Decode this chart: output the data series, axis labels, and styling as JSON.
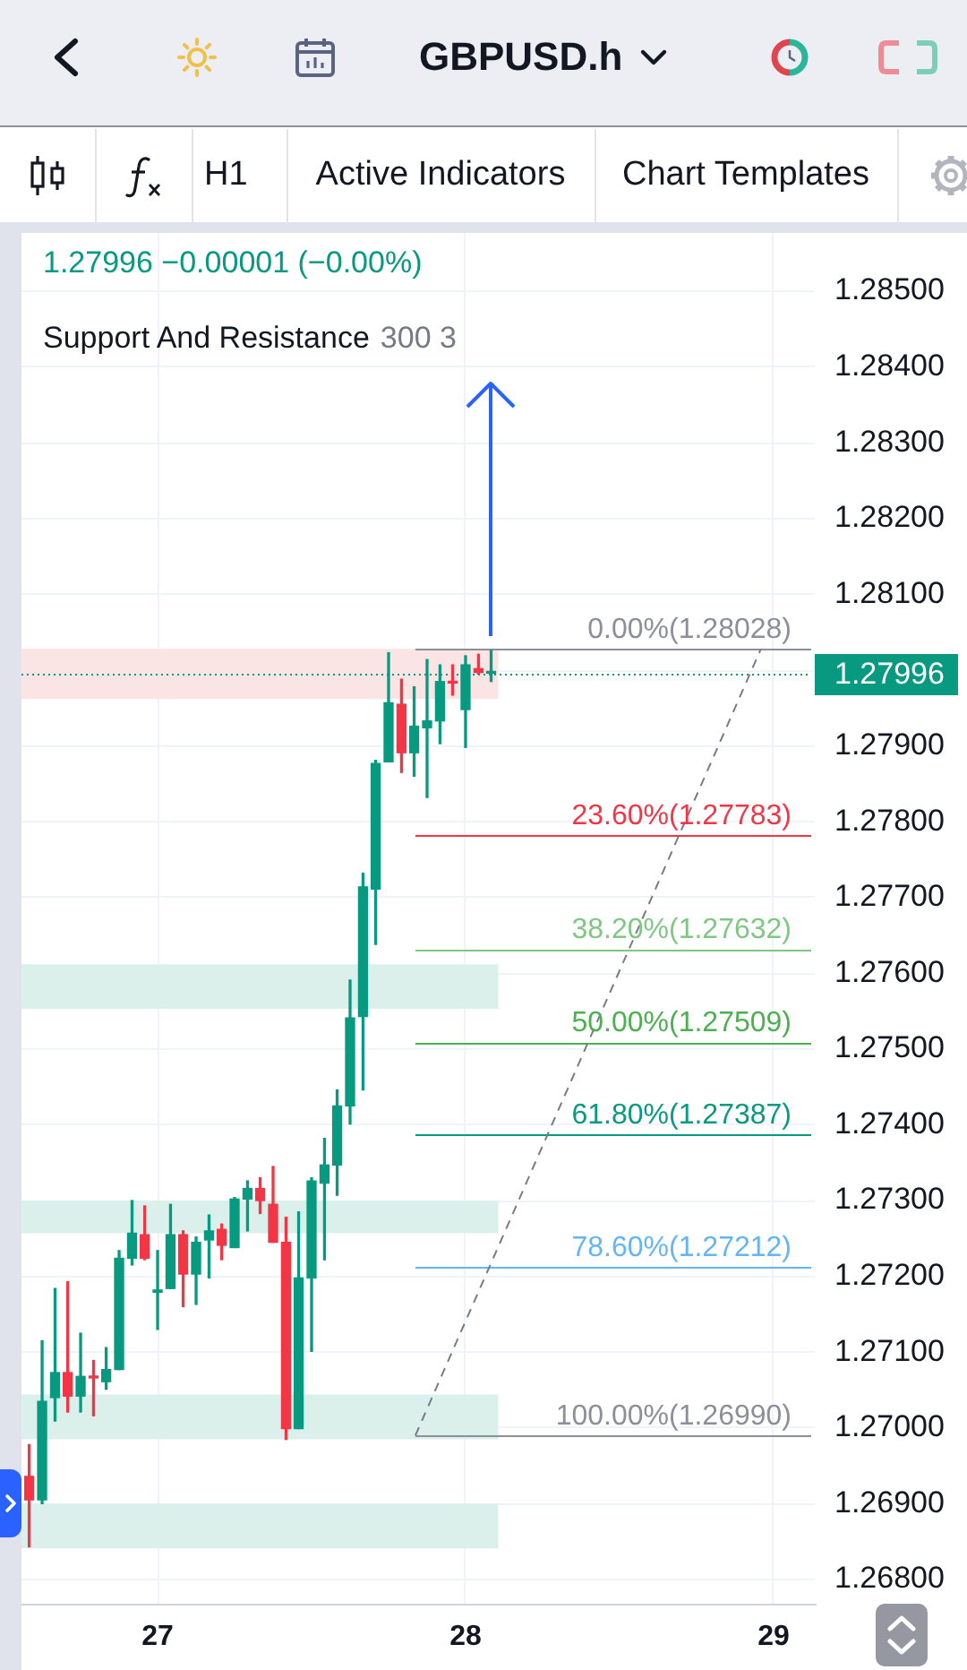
{
  "chart_data": {
    "type": "candlestick",
    "title": "GBPUSD.h",
    "annotations": [
      "H1",
      "Active Indicators",
      "Chart Templates",
      "1.27996 −0.00001 (−0.00%)",
      "Support And Resistance",
      "300 3"
    ],
    "x": [
      26.583,
      26.625,
      26.667,
      26.708,
      26.75,
      26.792,
      26.833,
      26.875,
      26.917,
      26.958,
      27,
      27.042,
      27.083,
      27.125,
      27.167,
      27.208,
      27.25,
      27.292,
      27.333,
      27.375,
      27.417,
      27.458,
      27.5,
      27.542,
      27.583,
      27.625,
      27.667,
      27.708,
      27.75,
      27.792,
      27.833,
      27.875,
      27.917,
      27.958,
      28,
      28.042,
      28.083
    ],
    "ohlc": [
      [
        1.26936,
        1.26978,
        1.26843,
        1.26905
      ],
      [
        1.26905,
        1.27115,
        1.269,
        1.27035
      ],
      [
        1.2704,
        1.27184,
        1.27009,
        1.27073
      ],
      [
        1.27073,
        1.27193,
        1.27021,
        1.27042
      ],
      [
        1.27042,
        1.27125,
        1.27021,
        1.27068
      ],
      [
        1.27068,
        1.27089,
        1.27016,
        1.27066
      ],
      [
        1.27061,
        1.27106,
        1.27051,
        1.27077
      ],
      [
        1.27077,
        1.27234,
        1.27077,
        1.27224
      ],
      [
        1.27224,
        1.273,
        1.27215,
        1.27257
      ],
      [
        1.27255,
        1.27293,
        1.27222,
        1.27224
      ],
      [
        1.27179,
        1.27234,
        1.2713,
        1.27182
      ],
      [
        1.27184,
        1.27295,
        1.27184,
        1.27255
      ],
      [
        1.27255,
        1.2726,
        1.2716,
        1.27203
      ],
      [
        1.27203,
        1.27252,
        1.27163,
        1.27245
      ],
      [
        1.27248,
        1.27281,
        1.27198,
        1.2726
      ],
      [
        1.27262,
        1.27269,
        1.27222,
        1.27241
      ],
      [
        1.27238,
        1.27304,
        1.27238,
        1.27302
      ],
      [
        1.27302,
        1.27326,
        1.2726,
        1.27316
      ],
      [
        1.27316,
        1.2733,
        1.27283,
        1.273
      ],
      [
        1.27295,
        1.27345,
        1.27245,
        1.27245
      ],
      [
        1.27245,
        1.27278,
        1.26985,
        1.26999
      ],
      [
        1.26999,
        1.27285,
        1.26999,
        1.27198
      ],
      [
        1.27198,
        1.2733,
        1.27101,
        1.27326
      ],
      [
        1.27323,
        1.27382,
        1.27222,
        1.27347
      ],
      [
        1.27347,
        1.27446,
        1.27307,
        1.27425
      ],
      [
        1.27425,
        1.27591,
        1.27401,
        1.27541
      ],
      [
        1.27543,
        1.27732,
        1.27446,
        1.27714
      ],
      [
        1.27711,
        1.27881,
        1.27638,
        1.27877
      ],
      [
        1.27879,
        1.28023,
        1.27879,
        1.27957
      ],
      [
        1.27955,
        1.27988,
        1.27865,
        1.27891
      ],
      [
        1.27891,
        1.27978,
        1.2786,
        1.27926
      ],
      [
        1.27924,
        1.28014,
        1.27832,
        1.27933
      ],
      [
        1.27933,
        1.28007,
        1.27903,
        1.27985
      ],
      [
        1.27985,
        1.28007,
        1.27967,
        1.27983
      ],
      [
        1.27948,
        1.28019,
        1.27898,
        1.28007
      ],
      [
        1.28002,
        1.28021,
        1.27995,
        1.27997
      ],
      [
        1.27996,
        1.28026,
        1.27985,
        1.27996
      ]
    ],
    "colors": [
      "#f23645",
      "#089981",
      "#089981",
      "#f23645",
      "#089981",
      "#f23645",
      "#089981",
      "#089981",
      "#089981",
      "#f23645",
      "#089981",
      "#089981",
      "#f23645",
      "#089981",
      "#089981",
      "#f23645",
      "#089981",
      "#089981",
      "#f23645",
      "#f23645",
      "#f23645",
      "#089981",
      "#089981",
      "#089981",
      "#089981",
      "#089981",
      "#089981",
      "#089981",
      "#089981",
      "#f23645",
      "#089981",
      "#089981",
      "#089981",
      "#f23645",
      "#089981",
      "#f23645",
      "#089981"
    ],
    "series": [
      {
        "type": "line",
        "x": [
          27.837,
          28.959
        ],
        "values": [
          1.2699,
          1.28028
        ],
        "color": "#787b86",
        "line_style": "dashed"
      }
    ],
    "xlim": [
      26.558,
      29.134
    ],
    "xticks": [
      27,
      28,
      29
    ],
    "ylim": [
      1.26768,
      1.28577
    ],
    "yticks": [
      {
        "value": 1.268,
        "label": "1.26800"
      },
      {
        "value": 1.269,
        "label": "1.26900"
      },
      {
        "value": 1.27,
        "label": "1.27000"
      },
      {
        "value": 1.271,
        "label": "1.27100"
      },
      {
        "value": 1.272,
        "label": "1.27200"
      },
      {
        "value": 1.273,
        "label": "1.27300"
      },
      {
        "value": 1.274,
        "label": "1.27400"
      },
      {
        "value": 1.275,
        "label": "1.27500"
      },
      {
        "value": 1.276,
        "label": "1.27600"
      },
      {
        "value": 1.277,
        "label": "1.27700"
      },
      {
        "value": 1.278,
        "label": "1.27800"
      },
      {
        "value": 1.279,
        "label": "1.27900"
      },
      {
        "value": 1.28,
        "label": null
      },
      {
        "value": 1.281,
        "label": "1.28100"
      },
      {
        "value": 1.282,
        "label": "1.28200"
      },
      {
        "value": 1.283,
        "label": "1.28300"
      },
      {
        "value": 1.284,
        "label": "1.28400"
      },
      {
        "value": 1.285,
        "label": "1.28500"
      }
    ],
    "bands": [
      {
        "axis": "y",
        "from": 1.27553,
        "to": 1.27612,
        "color": "#dcf0eb"
      },
      {
        "axis": "y",
        "from": 1.27257,
        "to": 1.273,
        "color": "#dcf0eb"
      },
      {
        "axis": "y",
        "from": 1.26985,
        "to": 1.27044,
        "color": "#dcf0eb"
      },
      {
        "axis": "y",
        "from": 1.26841,
        "to": 1.269,
        "color": "#dcf0eb"
      },
      {
        "axis": "y",
        "from": 1.27962,
        "to": 1.28028,
        "color": "#fbe4e4"
      }
    ],
    "ref_lines": [
      {
        "axis": "y",
        "value": 1.28028,
        "label": "0.00%(1.28028)",
        "color": "#8c8f99"
      },
      {
        "axis": "y",
        "value": 1.27783,
        "label": "23.60%(1.27783)",
        "color": "#f23645"
      },
      {
        "axis": "y",
        "value": 1.27632,
        "label": "38.20%(1.27632)",
        "color": "#81c784"
      },
      {
        "axis": "y",
        "value": 1.27509,
        "label": "50.00%(1.27509)",
        "color": "#4caf50"
      },
      {
        "axis": "y",
        "value": 1.27387,
        "label": "61.80%(1.27387)",
        "color": "#089981"
      },
      {
        "axis": "y",
        "value": 1.27212,
        "label": "78.60%(1.27212)",
        "color": "#64b5f6"
      },
      {
        "axis": "y",
        "value": 1.2699,
        "label": "100.00%(1.26990)",
        "color": "#8c8f99"
      },
      {
        "axis": "y",
        "value": 1.27996,
        "label": "1.27996",
        "color": "#089981",
        "line_style": "dotted"
      }
    ],
    "grid": true
  }
}
